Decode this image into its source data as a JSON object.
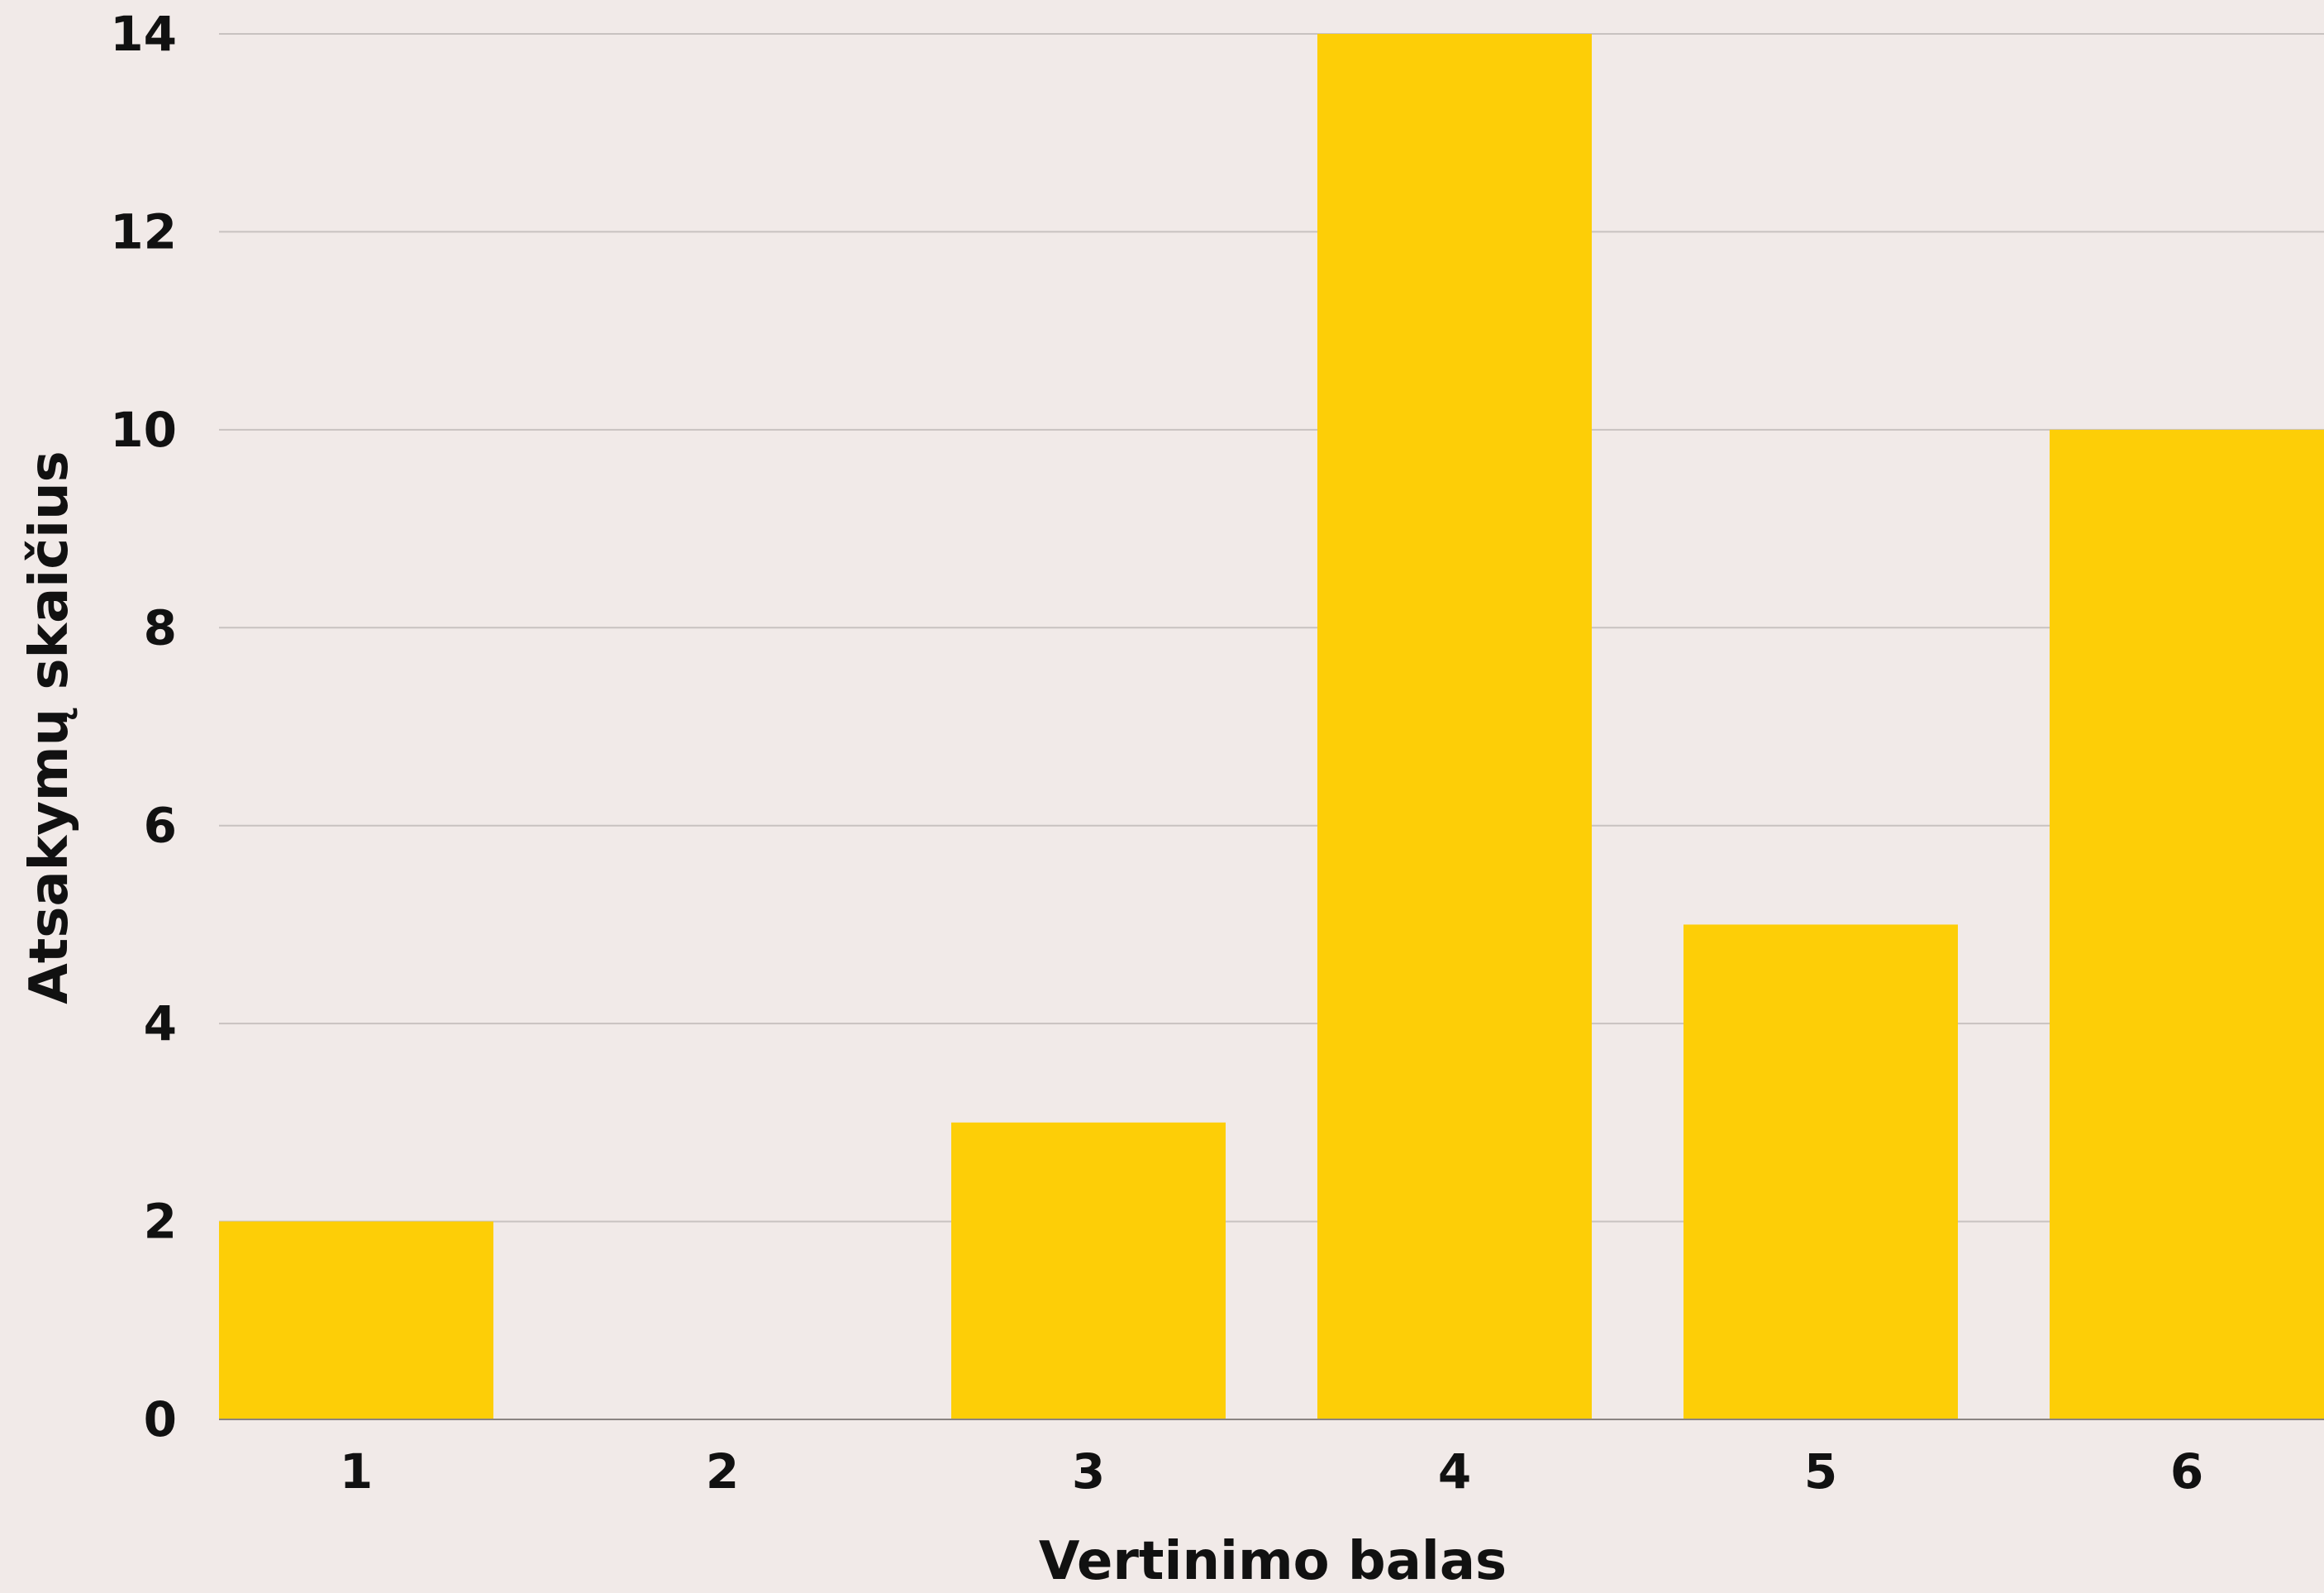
{
  "chart_data": {
    "type": "bar",
    "categories": [
      "1",
      "2",
      "3",
      "4",
      "5",
      "6"
    ],
    "values": [
      2,
      0,
      3,
      14,
      5,
      10
    ],
    "xlabel": "Vertinimo balas",
    "ylabel": "Atsakymų skaičius",
    "ylim": [
      0,
      14
    ],
    "yticks": [
      "0",
      "2",
      "4",
      "6",
      "8",
      "10",
      "12",
      "14"
    ],
    "grid": "horizontal",
    "legend": "none"
  },
  "colors": {
    "background": "#F1EAE8",
    "bar": "#FDCE07",
    "gridline": "#C8C2C0",
    "baseline": "#8A8482",
    "text": "#111111"
  }
}
